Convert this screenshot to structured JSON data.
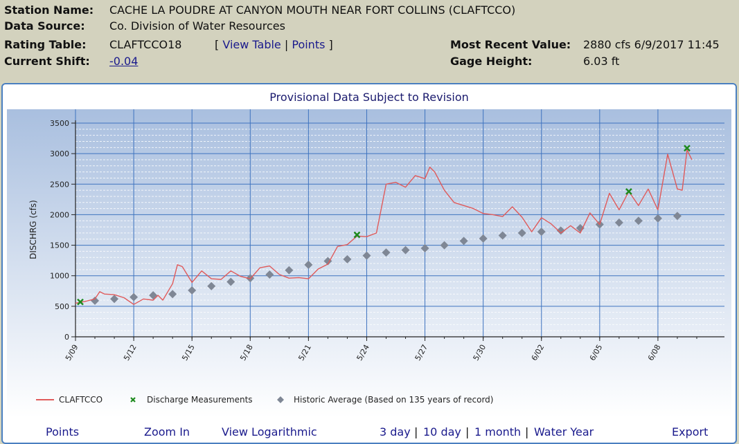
{
  "info": {
    "station_name_label": "Station Name:",
    "station_name": "CACHE LA POUDRE AT CANYON MOUTH NEAR FORT COLLINS (CLAFTCCO)",
    "data_source_label": "Data Source:",
    "data_source": "Co. Division of Water Resources",
    "rating_table_label": "Rating Table:",
    "rating_table": "CLAFTCCO18",
    "bracket_open": "[",
    "view_table": "View Table",
    "pipe": "|",
    "points": "Points",
    "bracket_close": "]",
    "current_shift_label": "Current Shift:",
    "current_shift": "-0.04",
    "most_recent_label": "Most Recent Value:",
    "most_recent": "2880 cfs 6/9/2017 11:45",
    "gage_height_label": "Gage Height:",
    "gage_height": "6.03 ft"
  },
  "toolbar": {
    "points": "Points",
    "zoom_in": "Zoom In",
    "view_log": "View Logarithmic",
    "day3": "3 day",
    "day10": "10 day",
    "month1": "1 month",
    "water_year": "Water Year",
    "pipe": "|",
    "export": "Export"
  },
  "colors": {
    "series_line": "#e05a5a",
    "measurement": "#1e8a1e",
    "historic": "#7f8795",
    "plot_bg_top": "#a9bfdf",
    "plot_bg_bottom": "#ffffff",
    "grid": "#3e73bf",
    "link": "#1a1a8c"
  },
  "chart_data": {
    "type": "line",
    "title": "Provisional Data Subject to Revision",
    "xlabel": "",
    "ylabel": "DISCHRG (cfs)",
    "ylim": [
      0,
      3500
    ],
    "yticks": [
      "0",
      "500",
      "1000",
      "1500",
      "2000",
      "2500",
      "3000",
      "3500"
    ],
    "xlim": [
      "2017-05-09",
      "2017-06-10"
    ],
    "xticks": [
      "5/09",
      "5/12",
      "5/15",
      "5/18",
      "5/21",
      "5/24",
      "5/27",
      "5/30",
      "6/02",
      "6/05",
      "6/08"
    ],
    "grid": true,
    "legend_position": "bottom",
    "series": [
      {
        "name": "CLAFTCCO",
        "kind": "line",
        "points": [
          [
            "2017-05-09T00:00",
            550
          ],
          [
            "2017-05-09T12:00",
            580
          ],
          [
            "2017-05-10T00:00",
            620
          ],
          [
            "2017-05-10T06:00",
            740
          ],
          [
            "2017-05-10T12:00",
            700
          ],
          [
            "2017-05-11T00:00",
            690
          ],
          [
            "2017-05-11T12:00",
            640
          ],
          [
            "2017-05-12T00:00",
            530
          ],
          [
            "2017-05-12T12:00",
            620
          ],
          [
            "2017-05-13T00:00",
            600
          ],
          [
            "2017-05-13T06:00",
            680
          ],
          [
            "2017-05-13T12:00",
            600
          ],
          [
            "2017-05-14T00:00",
            870
          ],
          [
            "2017-05-14T06:00",
            1180
          ],
          [
            "2017-05-14T12:00",
            1150
          ],
          [
            "2017-05-15T00:00",
            890
          ],
          [
            "2017-05-15T12:00",
            1080
          ],
          [
            "2017-05-16T00:00",
            950
          ],
          [
            "2017-05-16T12:00",
            940
          ],
          [
            "2017-05-17T00:00",
            1080
          ],
          [
            "2017-05-17T12:00",
            990
          ],
          [
            "2017-05-18T00:00",
            950
          ],
          [
            "2017-05-18T12:00",
            1130
          ],
          [
            "2017-05-19T00:00",
            1160
          ],
          [
            "2017-05-19T12:00",
            1020
          ],
          [
            "2017-05-20T00:00",
            960
          ],
          [
            "2017-05-20T12:00",
            970
          ],
          [
            "2017-05-21T00:00",
            950
          ],
          [
            "2017-05-21T12:00",
            1110
          ],
          [
            "2017-05-22T00:00",
            1190
          ],
          [
            "2017-05-22T12:00",
            1480
          ],
          [
            "2017-05-23T00:00",
            1510
          ],
          [
            "2017-05-23T12:00",
            1650
          ],
          [
            "2017-05-24T00:00",
            1640
          ],
          [
            "2017-05-24T12:00",
            1700
          ],
          [
            "2017-05-25T00:00",
            2500
          ],
          [
            "2017-05-25T12:00",
            2530
          ],
          [
            "2017-05-26T00:00",
            2450
          ],
          [
            "2017-05-26T12:00",
            2640
          ],
          [
            "2017-05-27T00:00",
            2590
          ],
          [
            "2017-05-27T06:00",
            2780
          ],
          [
            "2017-05-27T12:00",
            2700
          ],
          [
            "2017-05-28T00:00",
            2400
          ],
          [
            "2017-05-28T12:00",
            2200
          ],
          [
            "2017-05-29T00:00",
            2150
          ],
          [
            "2017-05-29T12:00",
            2100
          ],
          [
            "2017-05-30T00:00",
            2020
          ],
          [
            "2017-05-30T12:00",
            2000
          ],
          [
            "2017-05-31T00:00",
            1970
          ],
          [
            "2017-05-31T12:00",
            2130
          ],
          [
            "2017-06-01T00:00",
            1960
          ],
          [
            "2017-06-01T12:00",
            1720
          ],
          [
            "2017-06-02T00:00",
            1950
          ],
          [
            "2017-06-02T12:00",
            1850
          ],
          [
            "2017-06-03T00:00",
            1700
          ],
          [
            "2017-06-03T12:00",
            1820
          ],
          [
            "2017-06-04T00:00",
            1700
          ],
          [
            "2017-06-04T12:00",
            2030
          ],
          [
            "2017-06-05T00:00",
            1840
          ],
          [
            "2017-06-05T12:00",
            2350
          ],
          [
            "2017-06-06T00:00",
            2080
          ],
          [
            "2017-06-06T12:00",
            2380
          ],
          [
            "2017-06-07T00:00",
            2150
          ],
          [
            "2017-06-07T12:00",
            2420
          ],
          [
            "2017-06-08T00:00",
            2080
          ],
          [
            "2017-06-08T12:00",
            2990
          ],
          [
            "2017-06-09T00:00",
            2420
          ],
          [
            "2017-06-09T06:00",
            2400
          ],
          [
            "2017-06-09T12:00",
            3060
          ],
          [
            "2017-06-09T18:00",
            2900
          ]
        ]
      },
      {
        "name": "Discharge Measurements",
        "kind": "marker-x",
        "points": [
          [
            "2017-05-09T06:00",
            570
          ],
          [
            "2017-05-23T12:00",
            1670
          ],
          [
            "2017-06-06T12:00",
            2380
          ],
          [
            "2017-06-09T12:00",
            3090
          ]
        ]
      },
      {
        "name": "Historic Average (Based on 135 years of record)",
        "kind": "marker-diamond",
        "points": [
          [
            "2017-05-10",
            590
          ],
          [
            "2017-05-11",
            620
          ],
          [
            "2017-05-12",
            650
          ],
          [
            "2017-05-13",
            680
          ],
          [
            "2017-05-14",
            700
          ],
          [
            "2017-05-15",
            760
          ],
          [
            "2017-05-16",
            830
          ],
          [
            "2017-05-17",
            900
          ],
          [
            "2017-05-18",
            960
          ],
          [
            "2017-05-19",
            1020
          ],
          [
            "2017-05-20",
            1090
          ],
          [
            "2017-05-21",
            1180
          ],
          [
            "2017-05-22",
            1240
          ],
          [
            "2017-05-23",
            1270
          ],
          [
            "2017-05-24",
            1330
          ],
          [
            "2017-05-25",
            1380
          ],
          [
            "2017-05-26",
            1420
          ],
          [
            "2017-05-27",
            1450
          ],
          [
            "2017-05-28",
            1500
          ],
          [
            "2017-05-29",
            1570
          ],
          [
            "2017-05-30",
            1610
          ],
          [
            "2017-05-31",
            1660
          ],
          [
            "2017-06-01",
            1700
          ],
          [
            "2017-06-02",
            1720
          ],
          [
            "2017-06-03",
            1740
          ],
          [
            "2017-06-04",
            1780
          ],
          [
            "2017-06-05",
            1840
          ],
          [
            "2017-06-06",
            1870
          ],
          [
            "2017-06-07",
            1900
          ],
          [
            "2017-06-08",
            1940
          ],
          [
            "2017-06-09",
            1980
          ]
        ]
      }
    ]
  }
}
